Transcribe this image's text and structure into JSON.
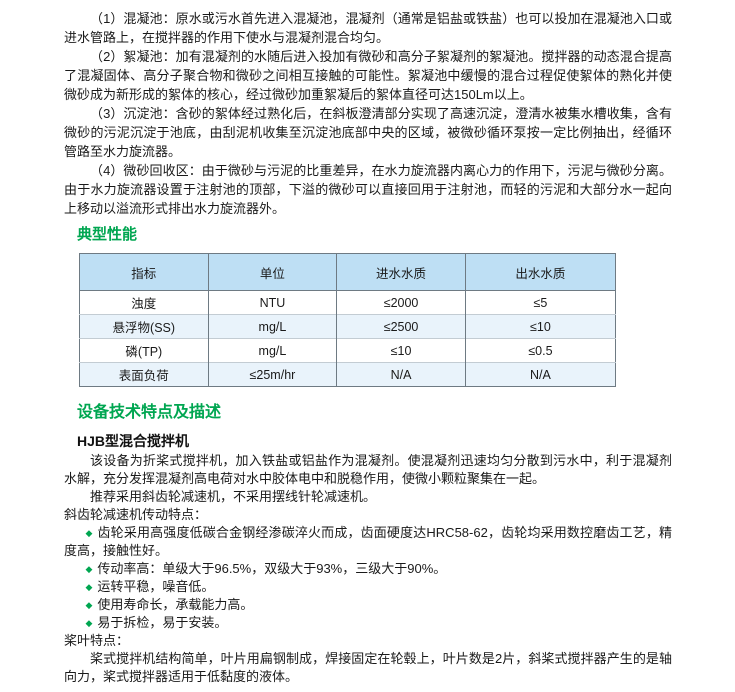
{
  "doc": {
    "intro": [
      "（1）混凝池：原水或污水首先进入混凝池，混凝剂（通常是铝盐或铁盐）也可以投加在混凝池入口或进水管路上，在搅拌器的作用下使水与混凝剂混合均匀。",
      "（2）絮凝池：加有混凝剂的水随后进入投加有微砂和高分子絮凝剂的絮凝池。搅拌器的动态混合提高了混凝固体、高分子聚合物和微砂之间相互接触的可能性。絮凝池中缓慢的混合过程促使絮体的熟化并使微砂成为新形成的絮体的核心，经过微砂加重絮凝后的絮体直径可达150Lm以上。",
      "（3）沉淀池：含砂的絮体经过熟化后，在斜板澄清部分实现了高速沉淀，澄清水被集水槽收集，含有微砂的污泥沉淀于池底，由刮泥机收集至沉淀池底部中央的区域，被微砂循环泵按一定比例抽出，经循环管路至水力旋流器。",
      "（4）微砂回收区：由于微砂与污泥的比重差异，在水力旋流器内离心力的作用下，污泥与微砂分离。由于水力旋流器设置于注射池的顶部，下溢的微砂可以直接回用于注射池，而轻的污泥和大部分水一起向上移动以溢流形式排出水力旋流器外。"
    ],
    "performance": {
      "title": "典型性能",
      "table": {
        "headers": [
          "指标",
          "单位",
          "进水水质",
          "出水水质"
        ],
        "rows": [
          [
            "浊度",
            "NTU",
            "≤2000",
            "≤5"
          ],
          [
            "悬浮物(SS)",
            "mg/L",
            "≤2500",
            "≤10"
          ],
          [
            "磷(TP)",
            "mg/L",
            "≤10",
            "≤0.5"
          ],
          [
            "表面负荷",
            "≤25m/hr",
            "N/A",
            "N/A"
          ]
        ]
      }
    },
    "features": {
      "title": "设备技术特点及描述",
      "subtitle": "HJB型混合搅拌机",
      "desc": [
        "该设备为折桨式搅拌机，加入铁盐或铝盐作为混凝剂。使混凝剂迅速均匀分散到污水中，利于混凝剂水解，充分发挥混凝剂高电荷对水中胶体电中和脱稳作用，使微小颗粒聚集在一起。",
        "推荐采用斜齿轮减速机，不采用摆线针轮减速机。"
      ],
      "gear_title": "斜齿轮减速机传动特点：",
      "bullet_icon": "◆",
      "gear_bullets": [
        "齿轮采用高强度低碳合金钢经渗碳淬火而成，齿面硬度达HRC58-62，齿轮均采用数控磨齿工艺，精度高，接触性好。",
        "传动率高：单级大于96.5%，双级大于93%，三级大于90%。",
        "运转平稳，噪音低。",
        "使用寿命长，承载能力高。",
        "易于拆检，易于安装。"
      ],
      "blade_title": "桨叶特点：",
      "blade_desc": "桨式搅拌机结构简单，叶片用扁钢制成，焊接固定在轮毂上，叶片数是2片，斜桨式搅拌器产生的是轴向力，桨式搅拌器适用于低黏度的液体。"
    },
    "colors": {
      "heading_green": "#00A651",
      "bullet_green": "#00A651",
      "table_header_bg": "#BEDFF4",
      "table_alt_row_bg": "#E9F3FB",
      "table_border": "#6e7a83"
    }
  }
}
